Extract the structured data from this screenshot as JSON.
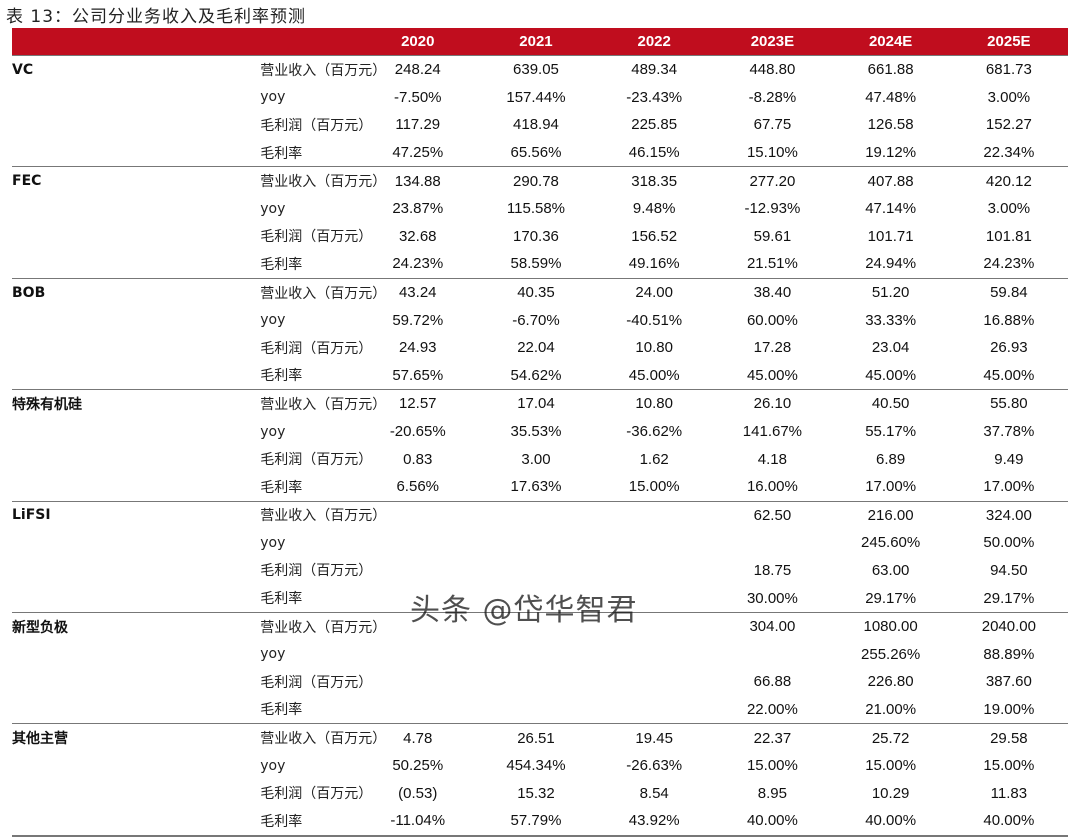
{
  "title": "表 13：公司分业务收入及毛利率预测",
  "header_color": "#c00d1e",
  "columns": [
    "",
    "",
    "2020",
    "2021",
    "2022",
    "2023E",
    "2024E",
    "2025E"
  ],
  "groups": [
    {
      "name": "VC",
      "rows": [
        {
          "metric": "营业收入（百万元）",
          "values": [
            "248.24",
            "639.05",
            "489.34",
            "448.80",
            "661.88",
            "681.73"
          ]
        },
        {
          "metric": "yoy",
          "values": [
            "-7.50%",
            "157.44%",
            "-23.43%",
            "-8.28%",
            "47.48%",
            "3.00%"
          ]
        },
        {
          "metric": "毛利润（百万元）",
          "values": [
            "117.29",
            "418.94",
            "225.85",
            "67.75",
            "126.58",
            "152.27"
          ]
        },
        {
          "metric": "毛利率",
          "values": [
            "47.25%",
            "65.56%",
            "46.15%",
            "15.10%",
            "19.12%",
            "22.34%"
          ]
        }
      ]
    },
    {
      "name": "FEC",
      "rows": [
        {
          "metric": "营业收入（百万元）",
          "values": [
            "134.88",
            "290.78",
            "318.35",
            "277.20",
            "407.88",
            "420.12"
          ]
        },
        {
          "metric": "yoy",
          "values": [
            "23.87%",
            "115.58%",
            "9.48%",
            "-12.93%",
            "47.14%",
            "3.00%"
          ]
        },
        {
          "metric": "毛利润（百万元）",
          "values": [
            "32.68",
            "170.36",
            "156.52",
            "59.61",
            "101.71",
            "101.81"
          ]
        },
        {
          "metric": "毛利率",
          "values": [
            "24.23%",
            "58.59%",
            "49.16%",
            "21.51%",
            "24.94%",
            "24.23%"
          ]
        }
      ]
    },
    {
      "name": "BOB",
      "rows": [
        {
          "metric": "营业收入（百万元）",
          "values": [
            "43.24",
            "40.35",
            "24.00",
            "38.40",
            "51.20",
            "59.84"
          ]
        },
        {
          "metric": "yoy",
          "values": [
            "59.72%",
            "-6.70%",
            "-40.51%",
            "60.00%",
            "33.33%",
            "16.88%"
          ]
        },
        {
          "metric": "毛利润（百万元）",
          "values": [
            "24.93",
            "22.04",
            "10.80",
            "17.28",
            "23.04",
            "26.93"
          ]
        },
        {
          "metric": "毛利率",
          "values": [
            "57.65%",
            "54.62%",
            "45.00%",
            "45.00%",
            "45.00%",
            "45.00%"
          ]
        }
      ]
    },
    {
      "name": "特殊有机硅",
      "rows": [
        {
          "metric": "营业收入（百万元）",
          "values": [
            "12.57",
            "17.04",
            "10.80",
            "26.10",
            "40.50",
            "55.80"
          ]
        },
        {
          "metric": "yoy",
          "values": [
            "-20.65%",
            "35.53%",
            "-36.62%",
            "141.67%",
            "55.17%",
            "37.78%"
          ]
        },
        {
          "metric": "毛利润（百万元）",
          "values": [
            "0.83",
            "3.00",
            "1.62",
            "4.18",
            "6.89",
            "9.49"
          ]
        },
        {
          "metric": "毛利率",
          "values": [
            "6.56%",
            "17.63%",
            "15.00%",
            "16.00%",
            "17.00%",
            "17.00%"
          ]
        }
      ]
    },
    {
      "name": "LiFSI",
      "rows": [
        {
          "metric": "营业收入（百万元）",
          "values": [
            "",
            "",
            "",
            "62.50",
            "216.00",
            "324.00"
          ]
        },
        {
          "metric": "yoy",
          "values": [
            "",
            "",
            "",
            "",
            "245.60%",
            "50.00%"
          ]
        },
        {
          "metric": "毛利润（百万元）",
          "values": [
            "",
            "",
            "",
            "18.75",
            "63.00",
            "94.50"
          ]
        },
        {
          "metric": "毛利率",
          "values": [
            "",
            "",
            "",
            "30.00%",
            "29.17%",
            "29.17%"
          ]
        }
      ]
    },
    {
      "name": "新型负极",
      "rows": [
        {
          "metric": "营业收入（百万元）",
          "values": [
            "",
            "",
            "",
            "304.00",
            "1080.00",
            "2040.00"
          ]
        },
        {
          "metric": "yoy",
          "values": [
            "",
            "",
            "",
            "",
            "255.26%",
            "88.89%"
          ]
        },
        {
          "metric": "毛利润（百万元）",
          "values": [
            "",
            "",
            "",
            "66.88",
            "226.80",
            "387.60"
          ]
        },
        {
          "metric": "毛利率",
          "values": [
            "",
            "",
            "",
            "22.00%",
            "21.00%",
            "19.00%"
          ]
        }
      ]
    },
    {
      "name": "其他主营",
      "rows": [
        {
          "metric": "营业收入（百万元）",
          "values": [
            "4.78",
            "26.51",
            "19.45",
            "22.37",
            "25.72",
            "29.58"
          ]
        },
        {
          "metric": "yoy",
          "values": [
            "50.25%",
            "454.34%",
            "-26.63%",
            "15.00%",
            "15.00%",
            "15.00%"
          ]
        },
        {
          "metric": "毛利润（百万元）",
          "values": [
            "(0.53)",
            "15.32",
            "8.54",
            "8.95",
            "10.29",
            "11.83"
          ]
        },
        {
          "metric": "毛利率",
          "values": [
            "-11.04%",
            "57.79%",
            "43.92%",
            "40.00%",
            "40.00%",
            "40.00%"
          ]
        }
      ]
    }
  ],
  "watermark": "头条 @岱华智君"
}
